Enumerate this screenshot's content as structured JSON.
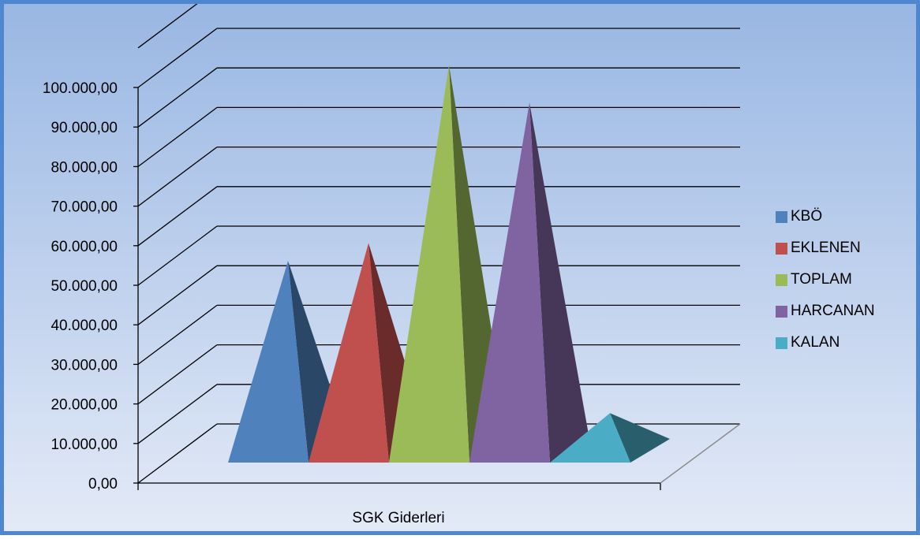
{
  "chart_data": {
    "type": "bar",
    "style": "3d-pyramid",
    "categories": [
      "SGK Giderleri"
    ],
    "xlabel": "SGK Giderleri",
    "ylim": [
      0,
      100000
    ],
    "yticks": [
      "0,00",
      "10.000,00",
      "20.000,00",
      "30.000,00",
      "40.000,00",
      "50.000,00",
      "60.000,00",
      "70.000,00",
      "80.000,00",
      "90.000,00",
      "100.000,00"
    ],
    "grid": true,
    "legend_position": "right",
    "series": [
      {
        "name": "KBÖ",
        "values": [
          48000
        ],
        "color": "#4f81bd"
      },
      {
        "name": "EKLENEN",
        "values": [
          52500
        ],
        "color": "#c0504d"
      },
      {
        "name": "TOPLAM",
        "values": [
          97500
        ],
        "color": "#9bbb59"
      },
      {
        "name": "HARCANAN",
        "values": [
          88000
        ],
        "color": "#8064a2"
      },
      {
        "name": "KALAN",
        "values": [
          9500
        ],
        "color": "#4bacc6"
      }
    ]
  }
}
